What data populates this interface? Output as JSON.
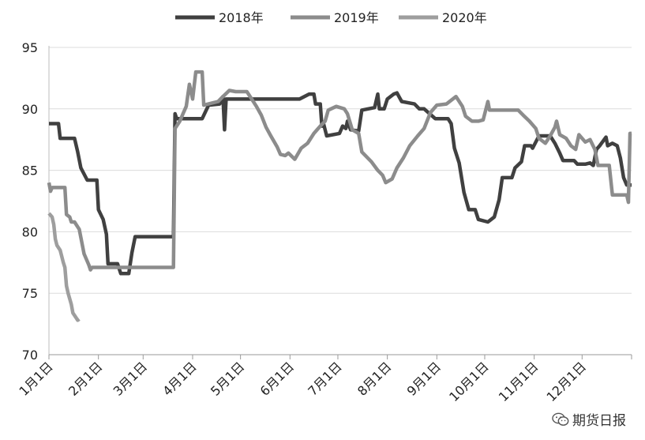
{
  "chart_data": {
    "type": "line",
    "title": "",
    "xlabel": "",
    "ylabel": "",
    "ylim": [
      70,
      95
    ],
    "yticks": [
      70,
      75,
      80,
      85,
      90,
      95
    ],
    "xlim": [
      1,
      366
    ],
    "xticks": [
      {
        "label": "1月1日",
        "day": 1
      },
      {
        "label": "2月1日",
        "day": 32
      },
      {
        "label": "3月1日",
        "day": 60
      },
      {
        "label": "4月1日",
        "day": 91
      },
      {
        "label": "5月1日",
        "day": 121
      },
      {
        "label": "6月1日",
        "day": 152
      },
      {
        "label": "7月1日",
        "day": 182
      },
      {
        "label": "8月1日",
        "day": 213
      },
      {
        "label": "9月1日",
        "day": 244
      },
      {
        "label": "10月1日",
        "day": 274
      },
      {
        "label": "11月1日",
        "day": 305
      },
      {
        "label": "12月1日",
        "day": 335
      }
    ],
    "grid": true,
    "legend_position": "top",
    "series": [
      {
        "name": "2018年",
        "color": "#404040",
        "points": [
          [
            1,
            88.8
          ],
          [
            7,
            88.8
          ],
          [
            8,
            87.6
          ],
          [
            17,
            87.6
          ],
          [
            19,
            86.5
          ],
          [
            21,
            85.2
          ],
          [
            25,
            84.2
          ],
          [
            31,
            84.2
          ],
          [
            32,
            81.8
          ],
          [
            35,
            81.0
          ],
          [
            37,
            79.8
          ],
          [
            38,
            77.4
          ],
          [
            44,
            77.4
          ],
          [
            46,
            76.6
          ],
          [
            51,
            76.6
          ],
          [
            53,
            78.3
          ],
          [
            55,
            79.6
          ],
          [
            77,
            79.6
          ],
          [
            79,
            79.6
          ],
          [
            80,
            89.6
          ],
          [
            81,
            89.2
          ],
          [
            97,
            89.2
          ],
          [
            101,
            90.3
          ],
          [
            108,
            90.4
          ],
          [
            110,
            91.0
          ],
          [
            111,
            88.3
          ],
          [
            112,
            90.8
          ],
          [
            158,
            90.8
          ],
          [
            164,
            91.2
          ],
          [
            167,
            91.2
          ],
          [
            168,
            90.4
          ],
          [
            171,
            90.4
          ],
          [
            172,
            88.6
          ],
          [
            173,
            88.8
          ],
          [
            175,
            87.8
          ],
          [
            183,
            88.0
          ],
          [
            185,
            88.6
          ],
          [
            187,
            88.4
          ],
          [
            188,
            89.0
          ],
          [
            190,
            88.3
          ],
          [
            195,
            88.2
          ],
          [
            197,
            89.9
          ],
          [
            205,
            90.1
          ],
          [
            207,
            91.2
          ],
          [
            208,
            90.0
          ],
          [
            211,
            90.0
          ],
          [
            213,
            90.8
          ],
          [
            217,
            91.2
          ],
          [
            219,
            91.3
          ],
          [
            222,
            90.6
          ],
          [
            230,
            90.4
          ],
          [
            233,
            90.0
          ],
          [
            236,
            90.0
          ],
          [
            243,
            89.2
          ],
          [
            251,
            89.2
          ],
          [
            253,
            88.8
          ],
          [
            255,
            86.8
          ],
          [
            258,
            85.6
          ],
          [
            261,
            83.2
          ],
          [
            264,
            81.8
          ],
          [
            268,
            81.8
          ],
          [
            270,
            81.0
          ],
          [
            276,
            80.8
          ],
          [
            278,
            81.0
          ],
          [
            280,
            81.2
          ],
          [
            283,
            82.6
          ],
          [
            285,
            84.4
          ],
          [
            291,
            84.4
          ],
          [
            293,
            85.2
          ],
          [
            297,
            85.7
          ],
          [
            299,
            87.0
          ],
          [
            303,
            87.0
          ],
          [
            304,
            86.8
          ],
          [
            308,
            87.8
          ],
          [
            315,
            87.8
          ],
          [
            318,
            87.2
          ],
          [
            321,
            86.4
          ],
          [
            323,
            85.8
          ],
          [
            330,
            85.8
          ],
          [
            332,
            85.5
          ],
          [
            337,
            85.5
          ],
          [
            340,
            85.6
          ],
          [
            342,
            85.4
          ],
          [
            344,
            86.7
          ],
          [
            346,
            87.0
          ],
          [
            350,
            87.7
          ],
          [
            351,
            87.0
          ],
          [
            354,
            87.2
          ],
          [
            357,
            87.0
          ],
          [
            359,
            86.0
          ],
          [
            361,
            84.4
          ],
          [
            363,
            83.8
          ],
          [
            366,
            83.8
          ]
        ]
      },
      {
        "name": "2019年",
        "color": "#8c8c8c",
        "points": [
          [
            1,
            84.0
          ],
          [
            2,
            83.3
          ],
          [
            3,
            83.6
          ],
          [
            11,
            83.6
          ],
          [
            12,
            81.4
          ],
          [
            14,
            81.2
          ],
          [
            15,
            80.8
          ],
          [
            17,
            80.8
          ],
          [
            20,
            80.2
          ],
          [
            23,
            78.2
          ],
          [
            26,
            77.3
          ],
          [
            27,
            76.9
          ],
          [
            28,
            77.1
          ],
          [
            79,
            77.1
          ],
          [
            80,
            88.4
          ],
          [
            83,
            89.0
          ],
          [
            85,
            89.6
          ],
          [
            87,
            90.2
          ],
          [
            89,
            92.0
          ],
          [
            91,
            90.8
          ],
          [
            93,
            93.0
          ],
          [
            97,
            93.0
          ],
          [
            98,
            90.3
          ],
          [
            107,
            90.6
          ],
          [
            110,
            91.0
          ],
          [
            114,
            91.5
          ],
          [
            118,
            91.4
          ],
          [
            125,
            91.4
          ],
          [
            127,
            91.0
          ],
          [
            131,
            90.2
          ],
          [
            134,
            89.5
          ],
          [
            137,
            88.5
          ],
          [
            140,
            87.8
          ],
          [
            144,
            86.9
          ],
          [
            146,
            86.3
          ],
          [
            149,
            86.2
          ],
          [
            151,
            86.4
          ],
          [
            155,
            85.9
          ],
          [
            159,
            86.8
          ],
          [
            163,
            87.2
          ],
          [
            167,
            88.0
          ],
          [
            171,
            88.6
          ],
          [
            174,
            89.0
          ],
          [
            176,
            89.9
          ],
          [
            181,
            90.2
          ],
          [
            186,
            90.0
          ],
          [
            188,
            89.6
          ],
          [
            191,
            88.3
          ],
          [
            195,
            88.0
          ],
          [
            197,
            86.5
          ],
          [
            203,
            85.7
          ],
          [
            207,
            85.0
          ],
          [
            210,
            84.6
          ],
          [
            212,
            84.0
          ],
          [
            216,
            84.3
          ],
          [
            219,
            85.2
          ],
          [
            223,
            86.0
          ],
          [
            227,
            87.0
          ],
          [
            232,
            87.8
          ],
          [
            236,
            88.4
          ],
          [
            240,
            89.7
          ],
          [
            244,
            90.3
          ],
          [
            250,
            90.4
          ],
          [
            256,
            91.0
          ],
          [
            260,
            90.2
          ],
          [
            262,
            89.4
          ],
          [
            266,
            89.0
          ],
          [
            270,
            89.0
          ],
          [
            273,
            89.1
          ],
          [
            276,
            90.6
          ],
          [
            277,
            89.9
          ],
          [
            295,
            89.9
          ],
          [
            298,
            89.5
          ],
          [
            302,
            89.0
          ],
          [
            306,
            88.4
          ],
          [
            308,
            87.6
          ],
          [
            312,
            87.2
          ],
          [
            315,
            87.8
          ],
          [
            318,
            88.5
          ],
          [
            319,
            89.0
          ],
          [
            321,
            87.9
          ],
          [
            325,
            87.6
          ],
          [
            328,
            87.0
          ],
          [
            331,
            86.7
          ],
          [
            333,
            87.9
          ],
          [
            337,
            87.3
          ],
          [
            340,
            87.5
          ],
          [
            343,
            86.7
          ],
          [
            345,
            85.4
          ],
          [
            352,
            85.4
          ],
          [
            354,
            83.0
          ],
          [
            363,
            83.0
          ],
          [
            364,
            82.4
          ],
          [
            365,
            88.0
          ],
          [
            366,
            88.0
          ]
        ]
      },
      {
        "name": "2020年",
        "color": "#9e9e9e",
        "points": [
          [
            1,
            81.5
          ],
          [
            3,
            81.2
          ],
          [
            4,
            80.6
          ],
          [
            5,
            79.4
          ],
          [
            6,
            78.9
          ],
          [
            8,
            78.5
          ],
          [
            9,
            78.0
          ],
          [
            10,
            77.5
          ],
          [
            11,
            77.1
          ],
          [
            12,
            75.6
          ],
          [
            13,
            75.0
          ],
          [
            15,
            74.1
          ],
          [
            16,
            73.4
          ],
          [
            18,
            73.0
          ],
          [
            19,
            72.8
          ],
          [
            20,
            72.9
          ]
        ]
      }
    ]
  },
  "watermark": {
    "text": "期货日报",
    "icon": "wechat-icon"
  }
}
